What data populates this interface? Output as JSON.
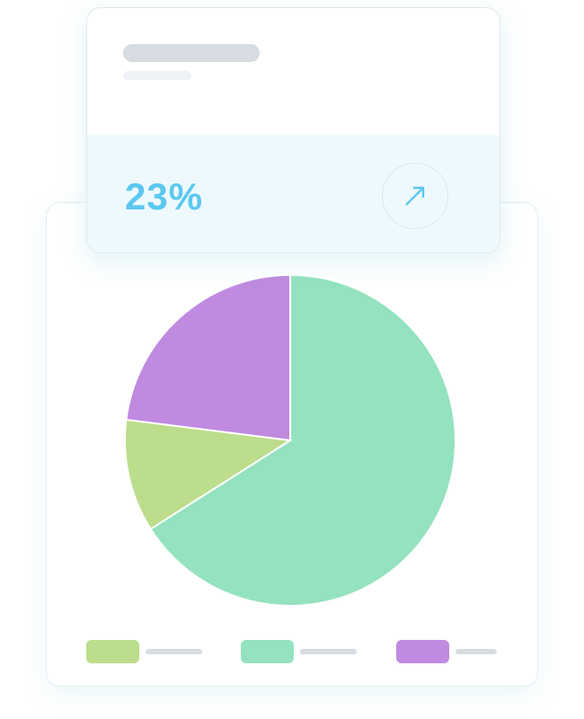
{
  "stat_card": {
    "value": "23%",
    "icon": "arrow-up-right-icon",
    "accent": "#5bc8ef"
  },
  "chart_data": {
    "type": "pie",
    "slices": [
      {
        "value": 66,
        "color": "#94e2bf"
      },
      {
        "value": 11,
        "color": "#bcdd8c"
      },
      {
        "value": 23,
        "color": "#bf8ae0"
      }
    ],
    "legend_order": [
      "#bcdd8c",
      "#94e2bf",
      "#bf8ae0"
    ]
  }
}
